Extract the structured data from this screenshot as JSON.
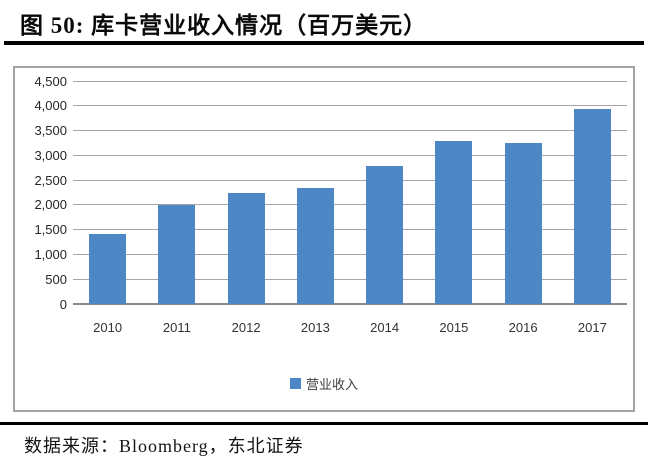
{
  "figure": {
    "title": "图 50: 库卡营业收入情况（百万美元）",
    "source": "数据来源：Bloomberg，东北证券"
  },
  "chart_data": {
    "type": "bar",
    "title": "库卡营业收入情况（百万美元）",
    "categories": [
      "2010",
      "2011",
      "2012",
      "2013",
      "2014",
      "2015",
      "2016",
      "2017"
    ],
    "series": [
      {
        "name": "营业收入",
        "values": [
          1420,
          2000,
          2230,
          2350,
          2780,
          3290,
          3250,
          3930
        ]
      }
    ],
    "xlabel": "",
    "ylabel": "",
    "ylim": [
      0,
      4500
    ],
    "ytick_interval": 500,
    "ytick_labels": [
      "0",
      "500",
      "1,000",
      "1,500",
      "2,000",
      "2,500",
      "3,000",
      "3,500",
      "4,000",
      "4,500"
    ],
    "grid": true,
    "legend_position": "bottom",
    "bar_color": "#4e87c6",
    "gridline_color": "#a6a6a6"
  }
}
